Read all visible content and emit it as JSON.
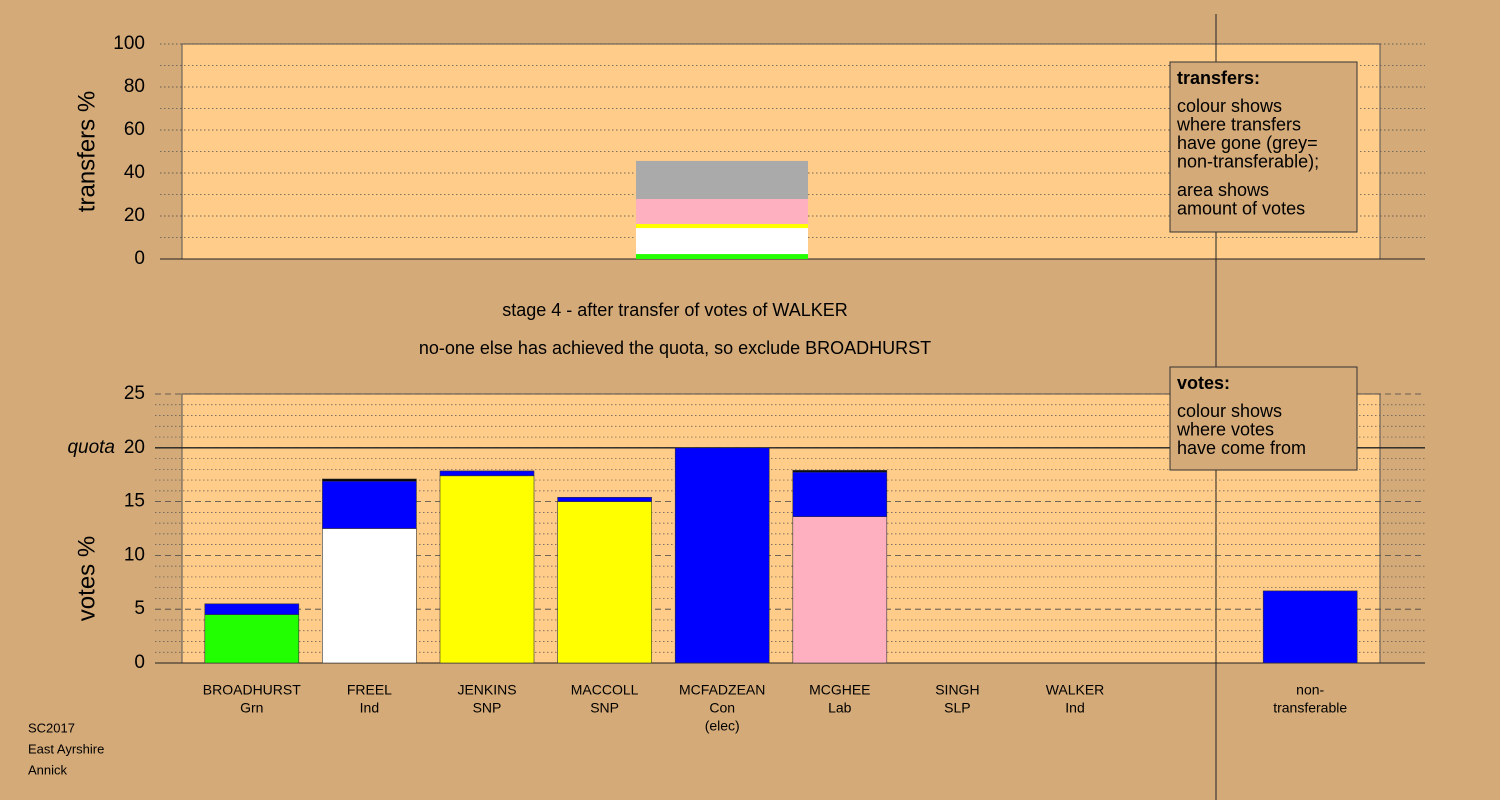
{
  "chart_data": [
    {
      "type": "bar",
      "ylabel": "transfers %",
      "ylim": [
        0,
        100
      ],
      "yticks": [
        0,
        20,
        40,
        60,
        80,
        100
      ],
      "minor_yticks": [
        10,
        30,
        50,
        70,
        90
      ],
      "series": [
        {
          "color": "#22ff00",
          "values": [
            2.3
          ]
        },
        {
          "color": "#ffffff",
          "values": [
            12.1
          ]
        },
        {
          "color": "#ffff00",
          "values": [
            1.9
          ]
        },
        {
          "color": "#ffb0c0",
          "values": [
            11.6
          ]
        },
        {
          "color": "#aaaaaa",
          "values": [
            17.7
          ]
        }
      ],
      "legend": {
        "title": "transfers:",
        "paragraphs": [
          [
            "colour shows",
            "where transfers",
            "have gone (grey=",
            "non-transferable);"
          ],
          [
            "area shows",
            "amount of votes"
          ]
        ]
      }
    },
    {
      "type": "bar",
      "ylabel": "votes %",
      "ylim": [
        0,
        25
      ],
      "yticks": [
        0,
        5,
        10,
        15,
        20,
        25
      ],
      "minor_yticks": [
        1,
        2,
        3,
        4,
        6,
        7,
        8,
        9,
        11,
        12,
        13,
        14,
        16,
        17,
        18,
        19,
        21,
        22,
        23,
        24
      ],
      "quota": {
        "label": "quota",
        "value": 20
      },
      "categories": [
        [
          "BROADHURST",
          "Grn"
        ],
        [
          "FREEL",
          "Ind"
        ],
        [
          "JENKINS",
          "SNP"
        ],
        [
          "MACCOLL",
          "SNP"
        ],
        [
          "MCFADZEAN",
          "Con",
          "(elec)"
        ],
        [
          "MCGHEE",
          "Lab"
        ],
        [
          "SINGH",
          "SLP"
        ],
        [
          "WALKER",
          "Ind"
        ],
        null,
        [
          "non-",
          "transferable"
        ]
      ],
      "series": [
        {
          "color": "#22ff00",
          "values": [
            4.5,
            0,
            0,
            0,
            0,
            0,
            0,
            0,
            null,
            0
          ]
        },
        {
          "color": "#ffffff",
          "values": [
            0,
            12.5,
            0,
            0,
            0,
            0,
            0,
            0,
            null,
            0
          ]
        },
        {
          "color": "#ffff00",
          "values": [
            0,
            0,
            17.4,
            15.0,
            0,
            0,
            0,
            0,
            null,
            0
          ]
        },
        {
          "color": "#ffb0c0",
          "values": [
            0,
            0,
            0,
            0,
            0,
            13.6,
            0,
            0,
            null,
            0
          ]
        },
        {
          "color": "#0000ff",
          "values": [
            1.0,
            4.4,
            0.45,
            0.4,
            20.0,
            4.15,
            0,
            0,
            null,
            6.7
          ]
        },
        {
          "color": "#000000",
          "values": [
            0,
            0.2,
            0,
            0,
            0,
            0.15,
            0,
            0,
            null,
            0
          ]
        }
      ],
      "annotations": [
        "stage 4 - after transfer of votes of WALKER",
        "no-one else has achieved the quota, so exclude BROADHURST"
      ],
      "legend": {
        "title": "votes:",
        "paragraphs": [
          [
            "colour shows",
            "where votes",
            "have come from"
          ]
        ]
      }
    }
  ],
  "footer": [
    "SC2017",
    "East Ayrshire",
    "Annick"
  ]
}
